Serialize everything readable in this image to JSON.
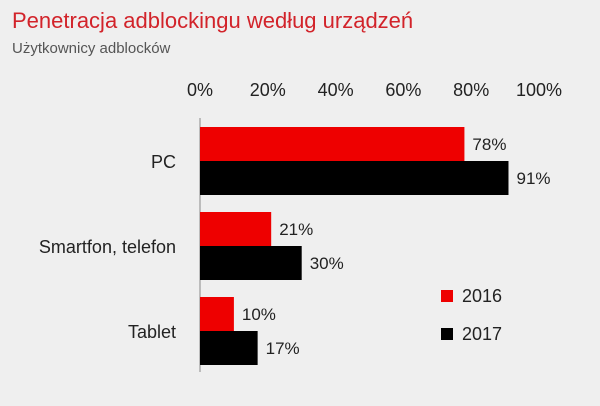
{
  "chart_data": {
    "type": "bar",
    "orientation": "horizontal",
    "title": "Penetracja adblockingu według urządzeń",
    "subtitle": "Użytkownicy adblocków",
    "categories": [
      "PC",
      "Smartfon, telefon",
      "Tablet"
    ],
    "series": [
      {
        "name": "2016",
        "color": "#ee0000",
        "values": [
          78,
          21,
          10
        ],
        "labels": [
          "78%",
          "21%",
          "10%"
        ]
      },
      {
        "name": "2017",
        "color": "#000000",
        "values": [
          91,
          30,
          17
        ],
        "labels": [
          "91%",
          "30%",
          "17%"
        ]
      }
    ],
    "xlim": [
      0,
      100
    ],
    "ticks": [
      0,
      20,
      40,
      60,
      80,
      100
    ],
    "tick_labels": [
      "0%",
      "20%",
      "40%",
      "60%",
      "80%",
      "100%"
    ],
    "axis_position": "top",
    "legend_position": "bottom-right",
    "grid": false
  }
}
